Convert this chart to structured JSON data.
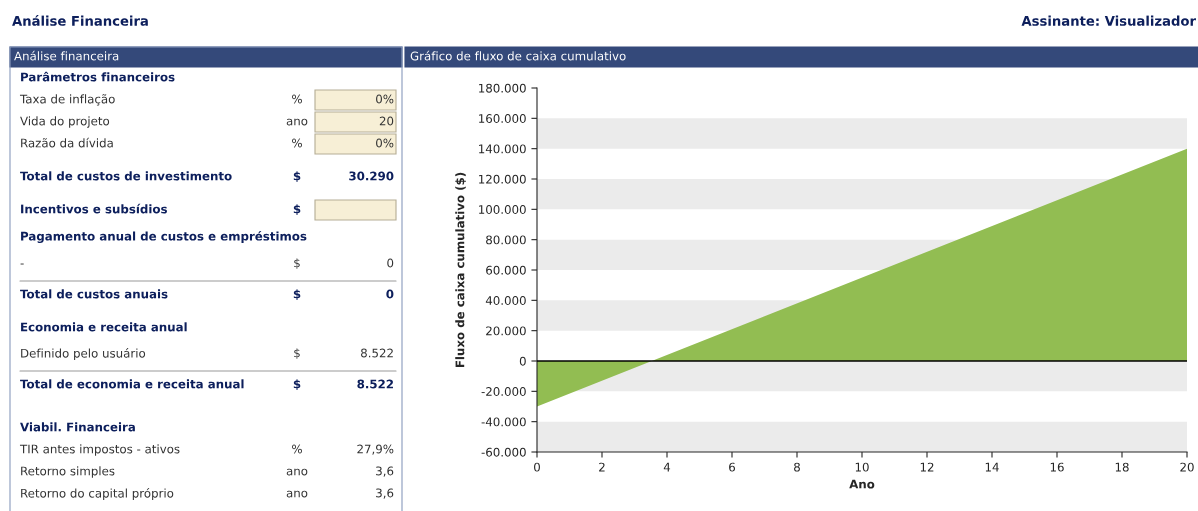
{
  "chart_data": [
    {
      "type": "other",
      "title": "Análise Financeira",
      "subtitle": "Análise financeira",
      "annotations": [
        "Assinante: Visualizador",
        "Parâmetros financeiros",
        "Taxa de inflação",
        "%",
        "0%",
        "Vida do projeto",
        "ano",
        "20",
        "Razão da dívida",
        "%",
        "0%",
        "Total de custos de investimento",
        "$",
        "30.290",
        "Incentivos e subsídios",
        "$",
        "Pagamento anual de custos e empréstimos",
        "-",
        "$",
        "0",
        "Total de custos anuais",
        "$",
        "0",
        "Economia e receita anual",
        "Definido pelo usuário",
        "$",
        "8.522",
        "Total de economia e receita anual",
        "$",
        "8.522",
        "Viabil. Financeira",
        "TIR antes impostos - ativos",
        "%",
        "27,9%",
        "Retorno simples",
        "ano",
        "3,6",
        "Retorno do capital próprio",
        "ano",
        "3,6"
      ]
    },
    {
      "type": "area",
      "title": "Gráfico de fluxo de caixa cumulativo",
      "xlabel": "Ano",
      "ylabel": "Fluxo de caixa cumulativo ($)",
      "x": [
        0,
        20
      ],
      "series": [
        {
          "color": "#92bd52",
          "values": [
            -30000,
            140000
          ]
        }
      ],
      "xlim": [
        0,
        20
      ],
      "xticks": [
        0,
        2,
        4,
        6,
        8,
        10,
        12,
        14,
        16,
        18,
        20
      ],
      "ylim": [
        -60000,
        180000
      ],
      "yticks": [
        {
          "value": -60000,
          "label": "-60.000"
        },
        {
          "value": -40000,
          "label": "-40.000"
        },
        {
          "value": -20000,
          "label": "-20.000"
        },
        0,
        {
          "value": 20000,
          "label": "20.000"
        },
        {
          "value": 40000,
          "label": "40.000"
        },
        {
          "value": 60000,
          "label": "60.000"
        },
        {
          "value": 80000,
          "label": "80.000"
        },
        {
          "value": 100000,
          "label": "100.000"
        },
        {
          "value": 120000,
          "label": "120.000"
        },
        {
          "value": 140000,
          "label": "140.000"
        },
        {
          "value": 160000,
          "label": "160.000"
        },
        {
          "value": 180000,
          "label": "180.000"
        }
      ],
      "ref_lines": [
        {
          "axis": "y",
          "value": 0,
          "color": "#000000"
        }
      ],
      "bands": [
        {
          "axis": "y",
          "from": -60000,
          "to": -40000,
          "color": "#ebebeb"
        },
        {
          "axis": "y",
          "from": -20000,
          "to": 0,
          "color": "#ebebeb"
        },
        {
          "axis": "y",
          "from": 20000,
          "to": 40000,
          "color": "#ebebeb"
        },
        {
          "axis": "y",
          "from": 60000,
          "to": 80000,
          "color": "#ebebeb"
        },
        {
          "axis": "y",
          "from": 100000,
          "to": 120000,
          "color": "#ebebeb"
        },
        {
          "axis": "y",
          "from": 140000,
          "to": 160000,
          "color": "#ebebeb"
        }
      ],
      "legend": false
    }
  ]
}
